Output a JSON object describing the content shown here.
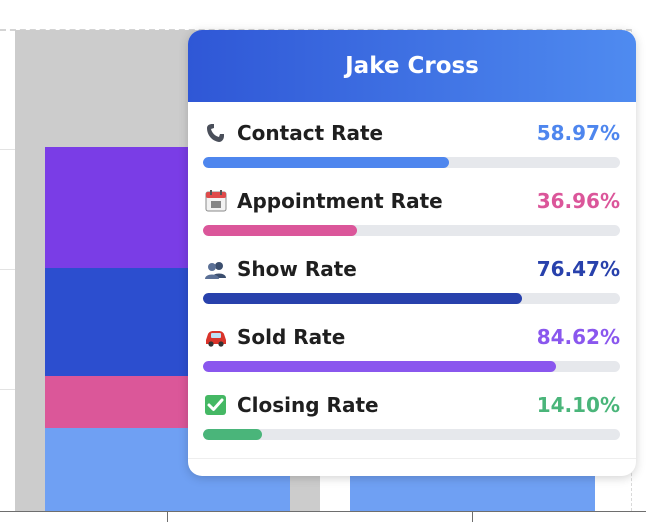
{
  "chart_data": {
    "type": "bar",
    "stacked": true,
    "grid": true
  },
  "tooltip": {
    "title": "Jake Cross",
    "metrics": [
      {
        "icon": "phone-icon",
        "label": "Contact Rate",
        "value_text": "58.97%",
        "value": 58.97,
        "color": "#4e86ee"
      },
      {
        "icon": "calendar-icon",
        "label": "Appointment Rate",
        "value_text": "36.96%",
        "value": 36.96,
        "color": "#db569a"
      },
      {
        "icon": "people-icon",
        "label": "Show Rate",
        "value_text": "76.47%",
        "value": 76.47,
        "color": "#2841ac"
      },
      {
        "icon": "car-icon",
        "label": "Sold Rate",
        "value_text": "84.62%",
        "value": 84.62,
        "color": "#8a57ee"
      },
      {
        "icon": "checkmark-icon",
        "label": "Closing Rate",
        "value_text": "14.10%",
        "value": 14.1,
        "color": "#4ab57a"
      }
    ]
  },
  "colors": {
    "header_start": "#2f57d6",
    "header_end": "#4f8bf0",
    "seg_purple": "#7a3de6",
    "seg_blue": "#2c4ecf",
    "seg_pink": "#db5799",
    "seg_light_blue": "#6fa0f3",
    "hover_band": "#cccccc"
  }
}
